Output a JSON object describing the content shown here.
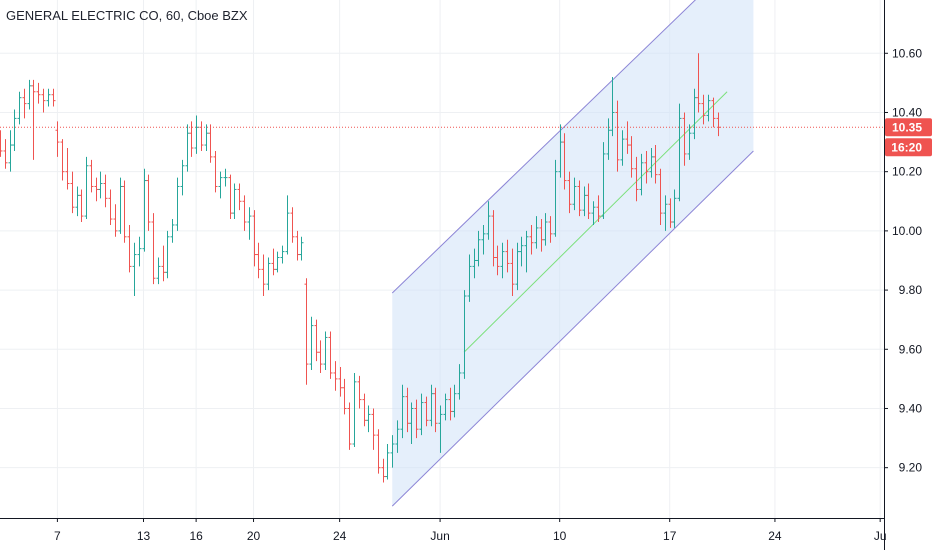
{
  "colors": {
    "up": "#26a69a",
    "down": "#ef5350",
    "grid": "#eef0f3",
    "axis": "#131722",
    "channel_line": "#8c85d6",
    "channel_fill": "#cfe1f7",
    "midline": "#7be07b",
    "price_line": "#ef5350",
    "badge": "#ef5350"
  },
  "chart_data": {
    "type": "ohlc",
    "title": "GENERAL ELECTRIC CO, 60, Cboe BZX",
    "y_ticks": [
      "9.20",
      "9.40",
      "9.60",
      "9.80",
      "10.00",
      "10.20",
      "10.40",
      "10.60"
    ],
    "ylim": [
      9.03,
      10.78
    ],
    "x_ticks": [
      {
        "label": "7",
        "bar": 12
      },
      {
        "label": "13",
        "bar": 30
      },
      {
        "label": "16",
        "bar": 41
      },
      {
        "label": "20",
        "bar": 53
      },
      {
        "label": "24",
        "bar": 71
      },
      {
        "label": "Jun",
        "bar": 92
      },
      {
        "label": "10",
        "bar": 117
      },
      {
        "label": "17",
        "bar": 140
      },
      {
        "label": "24",
        "bar": 162
      },
      {
        "label": "Ju",
        "bar": 184
      }
    ],
    "x_range": [
      0,
      184.8
    ],
    "last_price": {
      "value": 10.35,
      "label": "10.35"
    },
    "countdown": "16:20",
    "grid": true,
    "channel": {
      "upper": [
        {
          "bar": 82,
          "price": 9.79
        },
        {
          "bar": 157.5,
          "price": 10.97
        }
      ],
      "lower": [
        {
          "bar": 82,
          "price": 9.07
        },
        {
          "bar": 157.5,
          "price": 10.27
        }
      ],
      "mid": [
        {
          "bar": 97,
          "price": 9.59
        },
        {
          "bar": 152,
          "price": 10.47
        }
      ]
    },
    "ohlc": [
      [
        10.32,
        10.34,
        10.25,
        10.27
      ],
      [
        10.27,
        10.31,
        10.21,
        10.23
      ],
      [
        10.23,
        10.34,
        10.2,
        10.29
      ],
      [
        10.29,
        10.41,
        10.27,
        10.38
      ],
      [
        10.38,
        10.47,
        10.36,
        10.45
      ],
      [
        10.45,
        10.48,
        10.38,
        10.43
      ],
      [
        10.43,
        10.51,
        10.41,
        10.49
      ],
      [
        10.49,
        10.51,
        10.24,
        10.47
      ],
      [
        10.47,
        10.5,
        10.43,
        10.46
      ],
      [
        10.46,
        10.48,
        10.4,
        10.44
      ],
      [
        10.44,
        10.48,
        10.42,
        10.46
      ],
      [
        10.46,
        10.48,
        10.42,
        10.44
      ],
      [
        10.34,
        10.37,
        10.25,
        10.3
      ],
      [
        10.3,
        10.31,
        10.17,
        10.2
      ],
      [
        10.2,
        10.28,
        10.14,
        10.16
      ],
      [
        10.16,
        10.2,
        10.06,
        10.08
      ],
      [
        10.08,
        10.15,
        10.05,
        10.12
      ],
      [
        10.12,
        10.14,
        10.03,
        10.05
      ],
      [
        10.05,
        10.25,
        10.04,
        10.22
      ],
      [
        10.22,
        10.24,
        10.13,
        10.15
      ],
      [
        10.15,
        10.18,
        10.1,
        10.14
      ],
      [
        10.14,
        10.2,
        10.11,
        10.16
      ],
      [
        10.16,
        10.19,
        10.08,
        10.11
      ],
      [
        10.11,
        10.14,
        10.02,
        10.04
      ],
      [
        10.04,
        10.09,
        9.98,
        10.0
      ],
      [
        10.0,
        10.18,
        9.99,
        10.15
      ],
      [
        10.15,
        10.17,
        9.96,
        9.98
      ],
      [
        9.98,
        10.02,
        9.86,
        9.88
      ],
      [
        9.88,
        9.96,
        9.78,
        9.92
      ],
      [
        9.92,
        9.98,
        9.88,
        9.94
      ],
      [
        9.94,
        10.21,
        9.93,
        10.17
      ],
      [
        10.17,
        10.19,
        10.0,
        10.03
      ],
      [
        10.03,
        10.06,
        9.82,
        9.84
      ],
      [
        9.84,
        9.91,
        9.82,
        9.88
      ],
      [
        9.88,
        9.95,
        9.83,
        9.86
      ],
      [
        9.86,
        10.0,
        9.84,
        9.98
      ],
      [
        9.98,
        10.04,
        9.96,
        10.02
      ],
      [
        10.02,
        10.18,
        10.0,
        10.15
      ],
      [
        10.15,
        10.24,
        10.12,
        10.22
      ],
      [
        10.22,
        10.36,
        10.2,
        10.33
      ],
      [
        10.33,
        10.37,
        10.25,
        10.28
      ],
      [
        10.28,
        10.39,
        10.26,
        10.35
      ],
      [
        10.35,
        10.37,
        10.27,
        10.29
      ],
      [
        10.29,
        10.36,
        10.27,
        10.33
      ],
      [
        10.33,
        10.36,
        10.23,
        10.25
      ],
      [
        10.25,
        10.27,
        10.13,
        10.15
      ],
      [
        10.15,
        10.2,
        10.11,
        10.18
      ],
      [
        10.18,
        10.21,
        10.15,
        10.18
      ],
      [
        10.18,
        10.19,
        10.04,
        10.06
      ],
      [
        10.06,
        10.16,
        10.04,
        10.14
      ],
      [
        10.14,
        10.16,
        10.07,
        10.1
      ],
      [
        10.1,
        10.12,
        10.0,
        10.03
      ],
      [
        10.03,
        10.08,
        9.97,
        10.05
      ],
      [
        10.05,
        10.07,
        9.88,
        9.92
      ],
      [
        9.92,
        9.96,
        9.84,
        9.87
      ],
      [
        9.87,
        9.92,
        9.78,
        9.82
      ],
      [
        9.82,
        9.91,
        9.8,
        9.89
      ],
      [
        9.89,
        9.94,
        9.85,
        9.87
      ],
      [
        9.87,
        9.93,
        9.86,
        9.91
      ],
      [
        9.91,
        9.95,
        9.89,
        9.93
      ],
      [
        9.93,
        10.12,
        9.92,
        10.06
      ],
      [
        10.06,
        10.08,
        9.96,
        9.98
      ],
      [
        9.98,
        10.0,
        9.9,
        9.92
      ],
      [
        9.92,
        9.98,
        9.9,
        9.96
      ],
      [
        9.82,
        9.84,
        9.48,
        9.55
      ],
      [
        9.55,
        9.71,
        9.53,
        9.68
      ],
      [
        9.68,
        9.7,
        9.56,
        9.59
      ],
      [
        9.59,
        9.63,
        9.52,
        9.55
      ],
      [
        9.55,
        9.66,
        9.53,
        9.64
      ],
      [
        9.64,
        9.66,
        9.5,
        9.52
      ],
      [
        9.52,
        9.56,
        9.46,
        9.5
      ],
      [
        9.5,
        9.54,
        9.44,
        9.47
      ],
      [
        9.47,
        9.5,
        9.38,
        9.4
      ],
      [
        9.4,
        9.42,
        9.26,
        9.28
      ],
      [
        9.28,
        9.52,
        9.27,
        9.49
      ],
      [
        9.49,
        9.51,
        9.4,
        9.43
      ],
      [
        9.43,
        9.45,
        9.34,
        9.36
      ],
      [
        9.36,
        9.41,
        9.32,
        9.38
      ],
      [
        9.38,
        9.4,
        9.26,
        9.31
      ],
      [
        9.31,
        9.33,
        9.18,
        9.2
      ],
      [
        9.2,
        9.23,
        9.15,
        9.17
      ],
      [
        9.17,
        9.28,
        9.16,
        9.25
      ],
      [
        9.25,
        9.31,
        9.2,
        9.28
      ],
      [
        9.28,
        9.36,
        9.25,
        9.33
      ],
      [
        9.33,
        9.48,
        9.3,
        9.44
      ],
      [
        9.44,
        9.47,
        9.32,
        9.35
      ],
      [
        9.35,
        9.42,
        9.28,
        9.4
      ],
      [
        9.4,
        9.43,
        9.3,
        9.33
      ],
      [
        9.33,
        9.45,
        9.31,
        9.42
      ],
      [
        9.42,
        9.44,
        9.34,
        9.36
      ],
      [
        9.36,
        9.48,
        9.34,
        9.45
      ],
      [
        9.45,
        9.47,
        9.32,
        9.35
      ],
      [
        9.35,
        9.41,
        9.25,
        9.38
      ],
      [
        9.38,
        9.45,
        9.36,
        9.43
      ],
      [
        9.43,
        9.47,
        9.36,
        9.39
      ],
      [
        9.39,
        9.48,
        9.37,
        9.45
      ],
      [
        9.45,
        9.55,
        9.43,
        9.52
      ],
      [
        9.52,
        9.8,
        9.5,
        9.78
      ],
      [
        9.78,
        9.92,
        9.76,
        9.88
      ],
      [
        9.88,
        9.94,
        9.84,
        9.9
      ],
      [
        9.9,
        10.0,
        9.88,
        9.97
      ],
      [
        9.97,
        10.02,
        9.92,
        9.99
      ],
      [
        9.99,
        10.1,
        9.97,
        10.05
      ],
      [
        10.05,
        10.07,
        9.88,
        9.91
      ],
      [
        9.91,
        9.95,
        9.85,
        9.88
      ],
      [
        9.88,
        9.96,
        9.84,
        9.93
      ],
      [
        9.93,
        9.97,
        9.86,
        9.89
      ],
      [
        9.89,
        9.94,
        9.78,
        9.82
      ],
      [
        9.82,
        9.96,
        9.8,
        9.93
      ],
      [
        9.93,
        9.98,
        9.88,
        9.95
      ],
      [
        9.95,
        10.0,
        9.86,
        9.98
      ],
      [
        9.98,
        10.02,
        9.92,
        9.96
      ],
      [
        9.96,
        10.05,
        9.94,
        10.01
      ],
      [
        10.01,
        10.04,
        9.93,
        9.97
      ],
      [
        9.97,
        10.06,
        9.95,
        10.03
      ],
      [
        10.03,
        10.05,
        9.96,
        9.99
      ],
      [
        9.99,
        10.24,
        9.98,
        10.2
      ],
      [
        10.2,
        10.36,
        10.18,
        10.3
      ],
      [
        10.3,
        10.33,
        10.14,
        10.17
      ],
      [
        10.17,
        10.2,
        10.06,
        10.09
      ],
      [
        10.09,
        10.18,
        10.07,
        10.15
      ],
      [
        10.15,
        10.17,
        10.05,
        10.07
      ],
      [
        10.07,
        10.15,
        10.05,
        10.12
      ],
      [
        10.12,
        10.16,
        10.04,
        10.06
      ],
      [
        10.06,
        10.1,
        10.02,
        10.08
      ],
      [
        10.08,
        10.12,
        10.03,
        10.05
      ],
      [
        10.05,
        10.3,
        10.04,
        10.26
      ],
      [
        10.26,
        10.38,
        10.24,
        10.34
      ],
      [
        10.34,
        10.52,
        10.32,
        10.4
      ],
      [
        10.4,
        10.44,
        10.2,
        10.24
      ],
      [
        10.24,
        10.34,
        10.22,
        10.31
      ],
      [
        10.31,
        10.37,
        10.26,
        10.29
      ],
      [
        10.29,
        10.32,
        10.18,
        10.21
      ],
      [
        10.21,
        10.25,
        10.1,
        10.14
      ],
      [
        10.14,
        10.26,
        10.12,
        10.23
      ],
      [
        10.23,
        10.27,
        10.16,
        10.2
      ],
      [
        10.2,
        10.28,
        10.18,
        10.25
      ],
      [
        10.25,
        10.29,
        10.16,
        10.19
      ],
      [
        10.19,
        10.21,
        10.02,
        10.06
      ],
      [
        10.06,
        10.12,
        10.0,
        10.09
      ],
      [
        10.09,
        10.11,
        10.01,
        10.03
      ],
      [
        10.03,
        10.14,
        10.01,
        10.11
      ],
      [
        10.11,
        10.43,
        10.1,
        10.38
      ],
      [
        10.38,
        10.4,
        10.22,
        10.26
      ],
      [
        10.26,
        10.36,
        10.24,
        10.33
      ],
      [
        10.33,
        10.48,
        10.31,
        10.45
      ],
      [
        10.45,
        10.6,
        10.4,
        10.43
      ],
      [
        10.43,
        10.46,
        10.36,
        10.39
      ],
      [
        10.39,
        10.46,
        10.37,
        10.44
      ],
      [
        10.44,
        10.45,
        10.35,
        10.38
      ],
      [
        10.38,
        10.4,
        10.32,
        10.35
      ]
    ]
  }
}
